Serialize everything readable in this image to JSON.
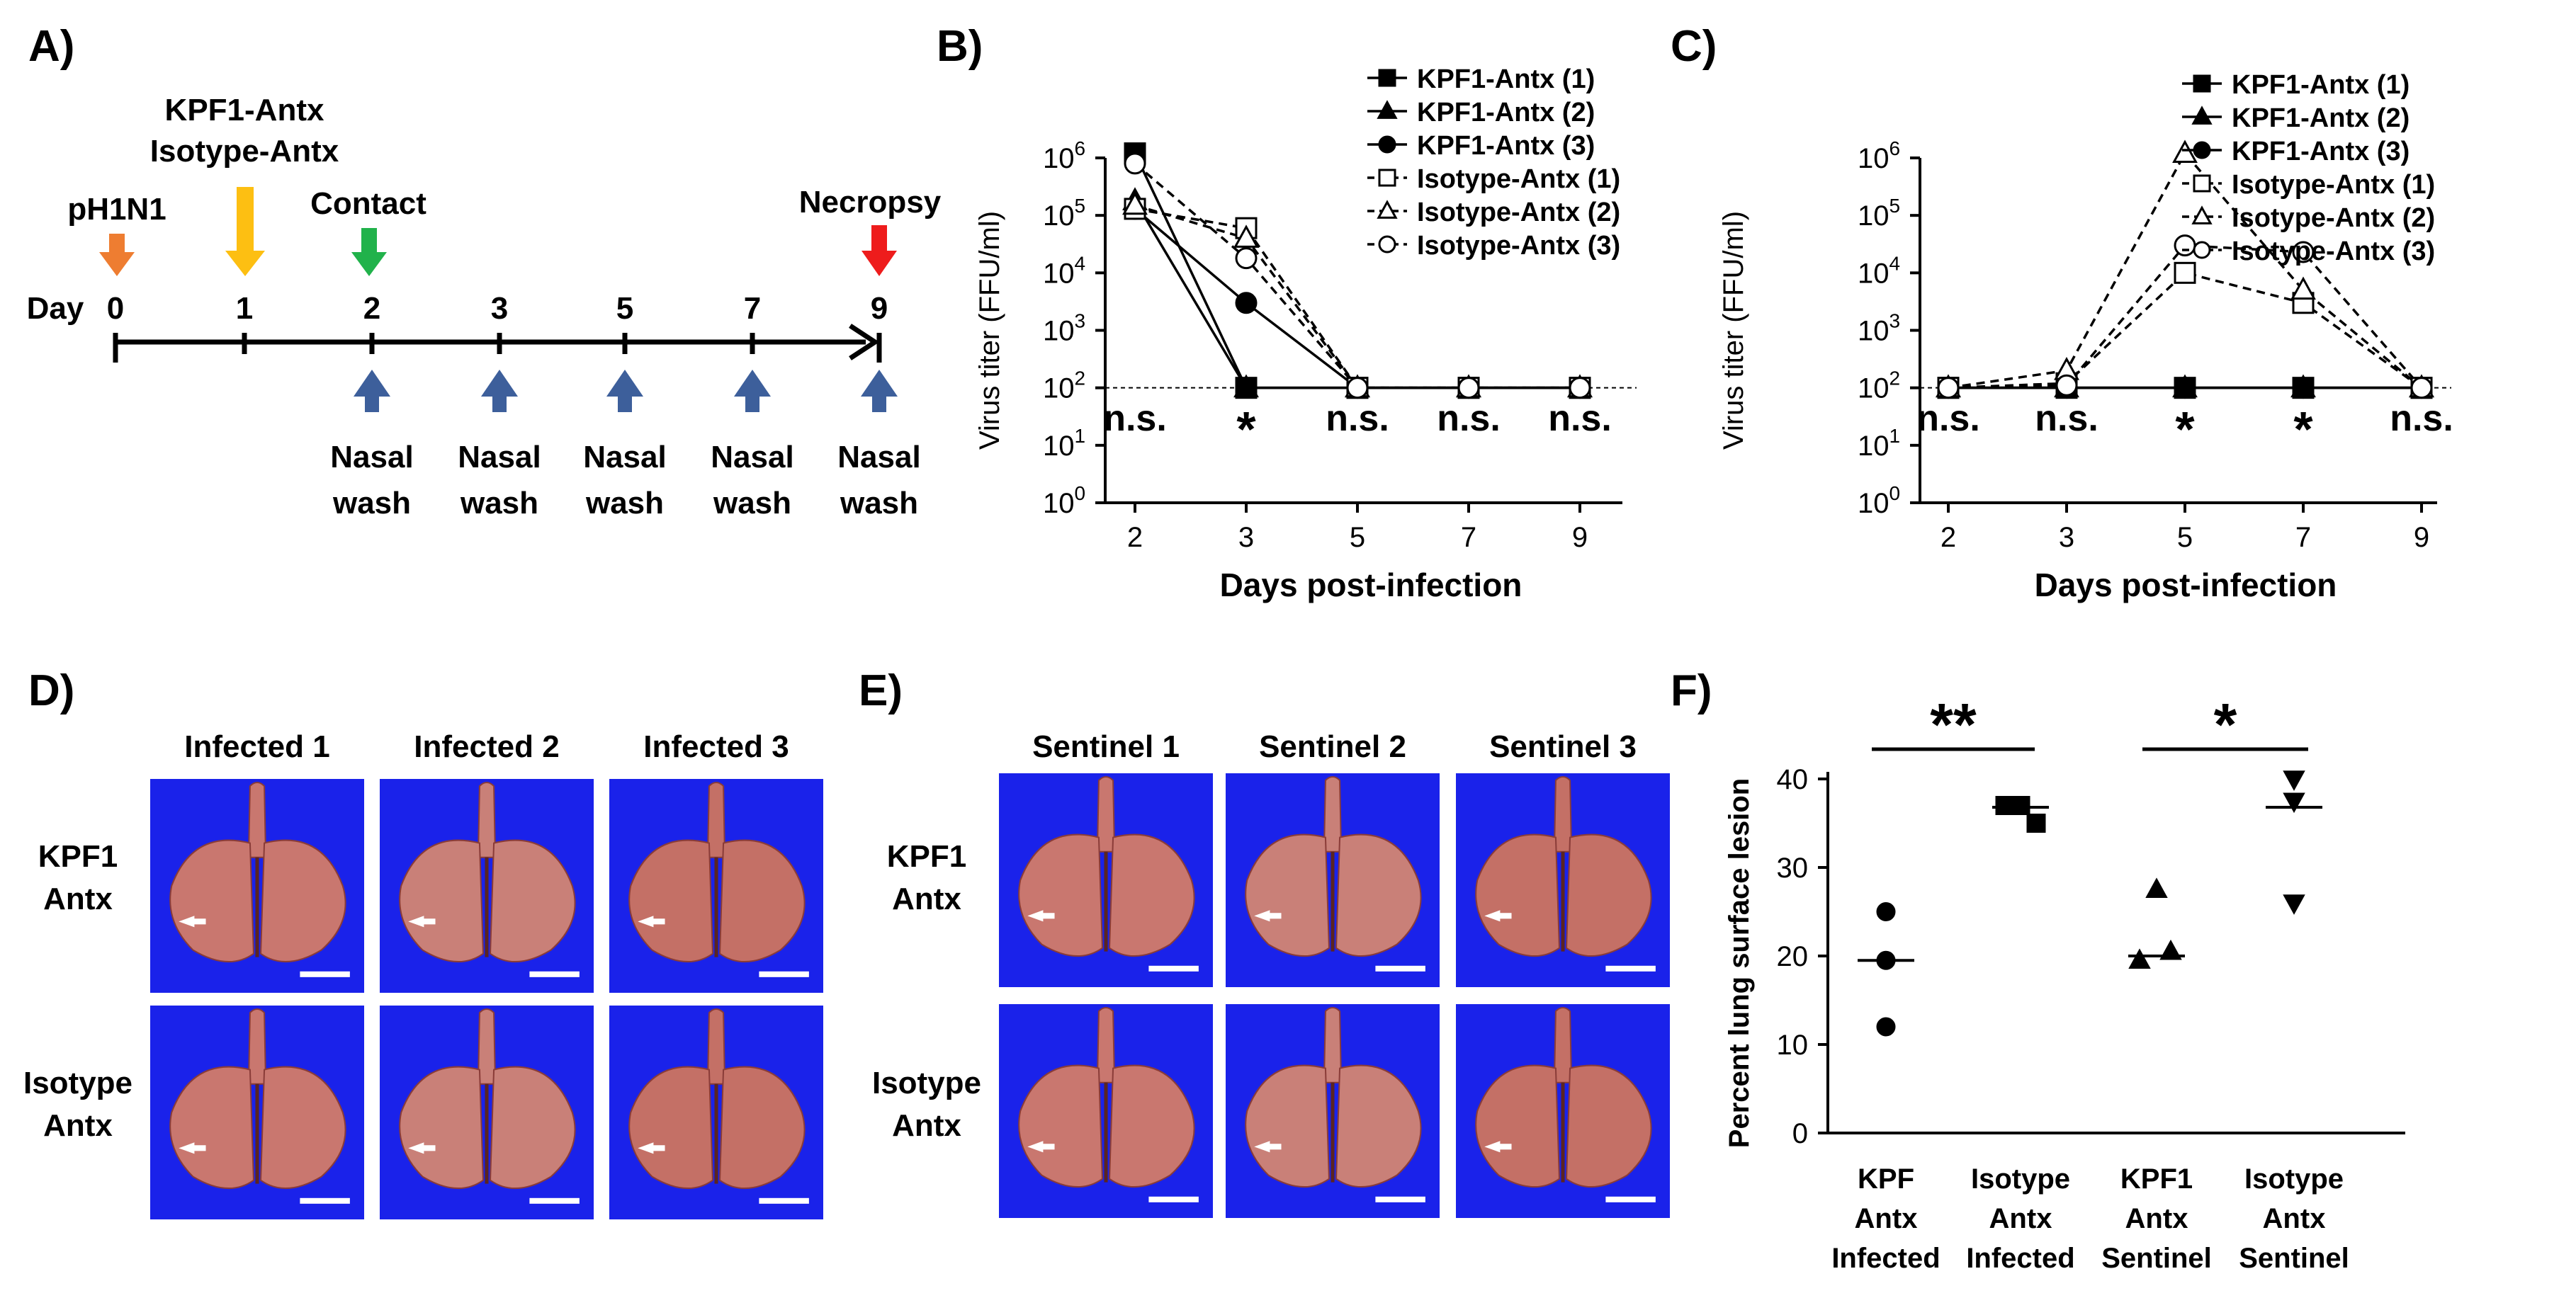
{
  "panel_letters": {
    "a": "A)",
    "b": "B)",
    "c": "C)",
    "d": "D)",
    "e": "E)",
    "f": "F)"
  },
  "timeline": {
    "day_label": "Day",
    "days": [
      "0",
      "1",
      "2",
      "3",
      "5",
      "7",
      "9"
    ],
    "top_labels": {
      "pH1N1": "pH1N1",
      "antx_line1": "KPF1-Antx",
      "antx_line2": "Isotype-Antx",
      "contact": "Contact",
      "necropsy": "Necropsy"
    },
    "wash_line1": "Nasal",
    "wash_line2": "wash",
    "colors": {
      "infection": "#ee7d31",
      "antibody": "#fdbf12",
      "contact": "#21b24b",
      "necropsy": "#ee1c1c",
      "wash": "#3d5f9b"
    }
  },
  "chart_data": [
    {
      "id": "B",
      "type": "line",
      "ylabel": "Virus titer (FFU/ml)",
      "xlabel": "Days post-infection",
      "x": [
        2,
        3,
        5,
        7,
        9
      ],
      "yscale": "log",
      "ylim": [
        1,
        1000000
      ],
      "ytick_labels": [
        "10",
        "10",
        "10",
        "10",
        "10",
        "10",
        "10"
      ],
      "ytick_exps": [
        "0",
        "1",
        "2",
        "3",
        "4",
        "5",
        "6"
      ],
      "detection_limit": 100,
      "series": [
        {
          "name": "KPF1-Antx (1)",
          "marker": "square",
          "filled": true,
          "dashed": false,
          "values": [
            1200000,
            100,
            100,
            100,
            100
          ]
        },
        {
          "name": "KPF1-Antx (2)",
          "marker": "triangle",
          "filled": true,
          "dashed": false,
          "values": [
            180000,
            100,
            100,
            100,
            100
          ]
        },
        {
          "name": "KPF1-Antx (3)",
          "marker": "circle",
          "filled": true,
          "dashed": false,
          "values": [
            130000,
            3000,
            100,
            100,
            100
          ]
        },
        {
          "name": "Isotype-Antx (1)",
          "marker": "square",
          "filled": false,
          "dashed": true,
          "values": [
            130000,
            60000,
            100,
            100,
            100
          ]
        },
        {
          "name": "Isotype-Antx (2)",
          "marker": "triangle",
          "filled": false,
          "dashed": true,
          "values": [
            150000,
            40000,
            100,
            100,
            100
          ]
        },
        {
          "name": "Isotype-Antx (3)",
          "marker": "circle",
          "filled": false,
          "dashed": true,
          "values": [
            800000,
            18000,
            100,
            100,
            100
          ]
        }
      ],
      "annotations": [
        "n.s.",
        "*",
        "n.s.",
        "n.s.",
        "n.s."
      ]
    },
    {
      "id": "C",
      "type": "line",
      "ylabel": "Virus titer (FFU/ml)",
      "xlabel": "Days post-infection",
      "x": [
        2,
        3,
        5,
        7,
        9
      ],
      "yscale": "log",
      "ylim": [
        1,
        1000000
      ],
      "ytick_labels": [
        "10",
        "10",
        "10",
        "10",
        "10",
        "10",
        "10"
      ],
      "ytick_exps": [
        "0",
        "1",
        "2",
        "3",
        "4",
        "5",
        "6"
      ],
      "detection_limit": 100,
      "series": [
        {
          "name": "KPF1-Antx (1)",
          "marker": "square",
          "filled": true,
          "dashed": false,
          "values": [
            100,
            100,
            100,
            100,
            100
          ]
        },
        {
          "name": "KPF1-Antx (2)",
          "marker": "triangle",
          "filled": true,
          "dashed": false,
          "values": [
            100,
            100,
            100,
            100,
            100
          ]
        },
        {
          "name": "KPF1-Antx (3)",
          "marker": "circle",
          "filled": true,
          "dashed": false,
          "values": [
            100,
            100,
            100,
            100,
            100
          ]
        },
        {
          "name": "Isotype-Antx (1)",
          "marker": "square",
          "filled": false,
          "dashed": true,
          "values": [
            100,
            120,
            10000,
            3000,
            100
          ]
        },
        {
          "name": "Isotype-Antx (2)",
          "marker": "triangle",
          "filled": false,
          "dashed": true,
          "values": [
            100,
            200,
            1200000,
            5000,
            100
          ]
        },
        {
          "name": "Isotype-Antx (3)",
          "marker": "circle",
          "filled": false,
          "dashed": true,
          "values": [
            100,
            110,
            30000,
            23000,
            100
          ]
        }
      ],
      "annotations": [
        "n.s.",
        "n.s.",
        "*",
        "*",
        "n.s."
      ]
    },
    {
      "id": "F",
      "type": "scatter",
      "ylabel": "Percent lung surface lesion",
      "ylim": [
        0,
        40
      ],
      "yticks": [
        "0",
        "10",
        "20",
        "30",
        "40"
      ],
      "groups": [
        {
          "label_lines": [
            "KPF",
            "Antx",
            "Infected"
          ],
          "marker": "circle",
          "values": [
            25,
            19.5,
            12
          ],
          "median": 19.5
        },
        {
          "label_lines": [
            "Isotype",
            "Antx",
            "Infected"
          ],
          "marker": "square",
          "values": [
            37,
            37,
            35
          ],
          "median": 36.8
        },
        {
          "label_lines": [
            "KPF1",
            "Antx",
            "Sentinel"
          ],
          "marker": "triangle-up",
          "values": [
            27.5,
            19.5,
            20.5
          ],
          "median": 20
        },
        {
          "label_lines": [
            "Isotype",
            "Antx",
            "Sentinel"
          ],
          "marker": "triangle-down",
          "values": [
            40,
            37.5,
            26
          ],
          "median": 36.8
        }
      ],
      "significance": [
        {
          "groups": [
            0,
            1
          ],
          "label": "**"
        },
        {
          "groups": [
            2,
            3
          ],
          "label": "*"
        }
      ]
    }
  ],
  "photos_d": {
    "cols": [
      "Infected 1",
      "Infected 2",
      "Infected 3"
    ],
    "row1_line1": "KPF1",
    "row1_line2": "Antx",
    "row2_line1": "Isotype",
    "row2_line2": "Antx"
  },
  "photos_e": {
    "cols": [
      "Sentinel 1",
      "Sentinel 2",
      "Sentinel 3"
    ],
    "row1_line1": "KPF1",
    "row1_line2": "Antx",
    "row2_line1": "Isotype",
    "row2_line2": "Antx"
  }
}
